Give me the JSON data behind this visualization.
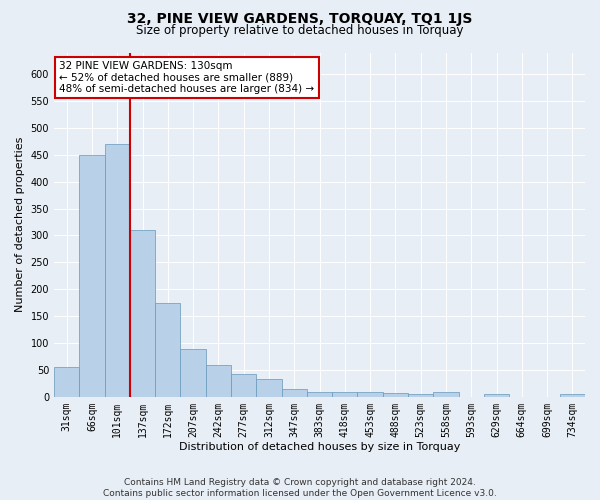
{
  "title": "32, PINE VIEW GARDENS, TORQUAY, TQ1 1JS",
  "subtitle": "Size of property relative to detached houses in Torquay",
  "xlabel": "Distribution of detached houses by size in Torquay",
  "ylabel": "Number of detached properties",
  "categories": [
    "31sqm",
    "66sqm",
    "101sqm",
    "137sqm",
    "172sqm",
    "207sqm",
    "242sqm",
    "277sqm",
    "312sqm",
    "347sqm",
    "383sqm",
    "418sqm",
    "453sqm",
    "488sqm",
    "523sqm",
    "558sqm",
    "593sqm",
    "629sqm",
    "664sqm",
    "699sqm",
    "734sqm"
  ],
  "values": [
    55,
    450,
    470,
    310,
    175,
    88,
    60,
    42,
    33,
    15,
    9,
    9,
    9,
    8,
    6,
    9,
    0,
    5,
    0,
    0,
    5
  ],
  "bar_color": "#b8d0e8",
  "bar_edge_color": "#6699bb",
  "property_line_color": "#cc0000",
  "property_line_x": 2.5,
  "annotation_line1": "32 PINE VIEW GARDENS: 130sqm",
  "annotation_line2": "← 52% of detached houses are smaller (889)",
  "annotation_line3": "48% of semi-detached houses are larger (834) →",
  "annotation_box_facecolor": "#ffffff",
  "annotation_box_edgecolor": "#cc0000",
  "ylim": [
    0,
    640
  ],
  "yticks": [
    0,
    50,
    100,
    150,
    200,
    250,
    300,
    350,
    400,
    450,
    500,
    550,
    600
  ],
  "footer_line1": "Contains HM Land Registry data © Crown copyright and database right 2024.",
  "footer_line2": "Contains public sector information licensed under the Open Government Licence v3.0.",
  "background_color": "#e8eef5",
  "grid_color": "#ffffff",
  "title_fontsize": 10,
  "subtitle_fontsize": 8.5,
  "ylabel_fontsize": 8,
  "xlabel_fontsize": 8,
  "tick_fontsize": 7,
  "annotation_fontsize": 7.5,
  "footer_fontsize": 6.5
}
